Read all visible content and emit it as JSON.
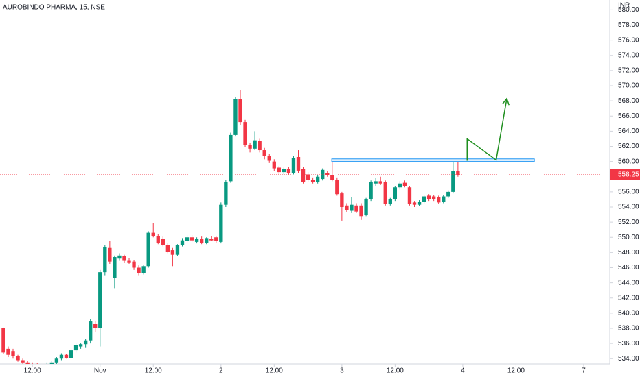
{
  "chart_data": {
    "type": "candlestick",
    "title": "AUROBINDO PHARMA, 15, NSE",
    "currency": "INR",
    "up_color": "#089981",
    "down_color": "#f23645",
    "ylim": [
      533.3,
      581.3
    ],
    "xlim": [
      -0.7,
      125.4
    ],
    "yticks": [
      {
        "value": 534,
        "label": "534.00"
      },
      {
        "value": 536,
        "label": "536.00"
      },
      {
        "value": 538,
        "label": "538.00"
      },
      {
        "value": 540,
        "label": "540.00"
      },
      {
        "value": 542,
        "label": "542.00"
      },
      {
        "value": 544,
        "label": "544.00"
      },
      {
        "value": 546,
        "label": "546.00"
      },
      {
        "value": 548,
        "label": "548.00"
      },
      {
        "value": 550,
        "label": "550.00"
      },
      {
        "value": 552,
        "label": "552.00"
      },
      {
        "value": 554,
        "label": "554.00"
      },
      {
        "value": 556,
        "label": "556.00"
      },
      {
        "value": 558,
        "label": "558.00"
      },
      {
        "value": 560,
        "label": "560.00"
      },
      {
        "value": 562,
        "label": "562.00"
      },
      {
        "value": 564,
        "label": "564.00"
      },
      {
        "value": 566,
        "label": "566.00"
      },
      {
        "value": 568,
        "label": "568.00"
      },
      {
        "value": 570,
        "label": "570.00"
      },
      {
        "value": 572,
        "label": "572.00"
      },
      {
        "value": 574,
        "label": "574.00"
      },
      {
        "value": 576,
        "label": "576.00"
      },
      {
        "value": 578,
        "label": "578.00"
      },
      {
        "value": 580,
        "label": "580.00"
      }
    ],
    "xticks": [
      {
        "value": 6,
        "label": "12:00"
      },
      {
        "value": 20,
        "label": "Nov"
      },
      {
        "value": 31,
        "label": "12:00"
      },
      {
        "value": 45,
        "label": "2"
      },
      {
        "value": 56,
        "label": "12:00"
      },
      {
        "value": 70,
        "label": "3"
      },
      {
        "value": 81,
        "label": "12:00"
      },
      {
        "value": 95,
        "label": "4"
      },
      {
        "value": 106,
        "label": "12:00"
      },
      {
        "value": 120,
        "label": "7"
      }
    ],
    "last_price": 558.25,
    "ohlc": [
      [
        538,
        538.1,
        534.6,
        534.8
      ],
      [
        535.3,
        535.6,
        534.2,
        534.5
      ],
      [
        535,
        535.3,
        534,
        534.3
      ],
      [
        534.3,
        534.5,
        533.6,
        533.8
      ],
      [
        533.8,
        534,
        533.3,
        533.5
      ],
      [
        533.5,
        533.7,
        533,
        533.2
      ],
      [
        533.2,
        533.5,
        532.8,
        533.1
      ],
      [
        533.1,
        533.4,
        532.7,
        532.9
      ],
      [
        532.9,
        533.3,
        532.6,
        533.1
      ],
      [
        533.1,
        533.5,
        532.9,
        533.3
      ],
      [
        533.3,
        533.7,
        533,
        533.5
      ],
      [
        533.5,
        534.2,
        533.3,
        534
      ],
      [
        534,
        534.7,
        533.8,
        534.5
      ],
      [
        534.5,
        534.6,
        534,
        534.1
      ],
      [
        534.1,
        535.3,
        534,
        535.1
      ],
      [
        535.1,
        536,
        534.8,
        535.8
      ],
      [
        535.6,
        536,
        535.3,
        535.9
      ],
      [
        535.9,
        536.6,
        535.5,
        536.4
      ],
      [
        536.4,
        539.2,
        536,
        538.9
      ],
      [
        538.6,
        539,
        537.5,
        538
      ],
      [
        538,
        545.7,
        535.6,
        545.4
      ],
      [
        545.4,
        549,
        545,
        548.7
      ],
      [
        548.6,
        549.5,
        546.5,
        546.8
      ],
      [
        544.6,
        547.6,
        543.3,
        547.4
      ],
      [
        547.2,
        547.9,
        546.9,
        547.6
      ],
      [
        547.5,
        547.7,
        546.6,
        546.9
      ],
      [
        546.9,
        547.3,
        546.5,
        546.7
      ],
      [
        546.8,
        547,
        545.7,
        546
      ],
      [
        546,
        546.3,
        545,
        545.3
      ],
      [
        545.3,
        546.4,
        545.1,
        546.2
      ],
      [
        546.2,
        550.8,
        546,
        550.6
      ],
      [
        550.6,
        551.9,
        550,
        550.2
      ],
      [
        550.2,
        550.4,
        549.1,
        549.3
      ],
      [
        549.8,
        550.1,
        548.8,
        549
      ],
      [
        549,
        549.2,
        547.9,
        548.1
      ],
      [
        548.3,
        548.6,
        546.2,
        547.7
      ],
      [
        547.7,
        549.1,
        547.5,
        549
      ],
      [
        549,
        549.9,
        548.8,
        549.6
      ],
      [
        549.5,
        550.3,
        549.3,
        550
      ],
      [
        550,
        550.3,
        549.4,
        549.6
      ],
      [
        549.4,
        550,
        549.2,
        549.8
      ],
      [
        549.8,
        550.1,
        549.1,
        549.3
      ],
      [
        549.3,
        550,
        549.1,
        549.9
      ],
      [
        549.8,
        550.2,
        549.5,
        549.6
      ],
      [
        550,
        550.2,
        549.3,
        549.5
      ],
      [
        549.4,
        554.6,
        549.2,
        554.3
      ],
      [
        554.3,
        557.6,
        554,
        557.3
      ],
      [
        557.4,
        563.8,
        557.2,
        563.5
      ],
      [
        563.5,
        568.5,
        563.3,
        568.2
      ],
      [
        568.2,
        569.4,
        564.8,
        565.2
      ],
      [
        565.2,
        565.5,
        561.9,
        562.2
      ],
      [
        562.2,
        562.5,
        561.2,
        561.7
      ],
      [
        561.7,
        564,
        561.5,
        562.8
      ],
      [
        562.7,
        563,
        561.2,
        561.5
      ],
      [
        561.5,
        561.8,
        560.3,
        560.7
      ],
      [
        560.7,
        561,
        559.8,
        560.1
      ],
      [
        560,
        560.3,
        558.7,
        559.1
      ],
      [
        559.2,
        559.4,
        558.3,
        558.6
      ],
      [
        558.6,
        559.2,
        558.3,
        559
      ],
      [
        559,
        559.3,
        558.3,
        558.5
      ],
      [
        558.5,
        560.7,
        558.3,
        560.5
      ],
      [
        560.6,
        561.5,
        558.5,
        558.8
      ],
      [
        559,
        559.3,
        557.1,
        557.3
      ],
      [
        558.3,
        558.6,
        557.3,
        557.6
      ],
      [
        557.6,
        557.9,
        557.1,
        557.3
      ],
      [
        557.3,
        558.2,
        557.1,
        558
      ],
      [
        557.7,
        559.1,
        557.5,
        558.9
      ],
      [
        558.5,
        558.7,
        558,
        558.2
      ],
      [
        558.2,
        560,
        557.4,
        557.6
      ],
      [
        557.6,
        557.9,
        555.5,
        555.7
      ],
      [
        555.8,
        556,
        552.2,
        554
      ],
      [
        554.2,
        554.5,
        553.3,
        553.6
      ],
      [
        553.5,
        555.3,
        553.2,
        554.3
      ],
      [
        554.2,
        554.5,
        553.2,
        553.4
      ],
      [
        554.2,
        554.5,
        552.3,
        552.8
      ],
      [
        553,
        555.2,
        552.8,
        555
      ],
      [
        555,
        557.5,
        554.8,
        557.3
      ],
      [
        557.1,
        557.8,
        556.8,
        557.4
      ],
      [
        557.4,
        558,
        556.9,
        557.1
      ],
      [
        557.3,
        557.5,
        554.2,
        554.4
      ],
      [
        554.4,
        555.2,
        554.2,
        555
      ],
      [
        555,
        556.8,
        554.8,
        556.6
      ],
      [
        556.6,
        557.4,
        556.3,
        557.1
      ],
      [
        557.2,
        557.5,
        556.6,
        556.8
      ],
      [
        556.6,
        556.8,
        554.2,
        554.4
      ],
      [
        554.6,
        554.8,
        554,
        554.3
      ],
      [
        554.3,
        554.9,
        554.1,
        554.7
      ],
      [
        554.7,
        555.6,
        554.5,
        555.4
      ],
      [
        555.5,
        555.7,
        554.8,
        555
      ],
      [
        555.4,
        555.6,
        554.8,
        555
      ],
      [
        555.3,
        555.5,
        554.4,
        554.6
      ],
      [
        554.7,
        555.6,
        554.5,
        555.4
      ],
      [
        555.4,
        556.2,
        555.2,
        556
      ],
      [
        556,
        560,
        555.8,
        558.7
      ],
      [
        558.7,
        559.9,
        558,
        558.25
      ]
    ],
    "zone": {
      "x": [
        67.9,
        109.8
      ],
      "y": [
        560,
        560.35
      ],
      "color": "#2196f3"
    },
    "arrow": {
      "x": [
        95.9,
        95.9,
        101.9,
        104.1
      ],
      "y": [
        560.1,
        563,
        560.2,
        568.3
      ],
      "color": "#1f8f1f"
    }
  }
}
